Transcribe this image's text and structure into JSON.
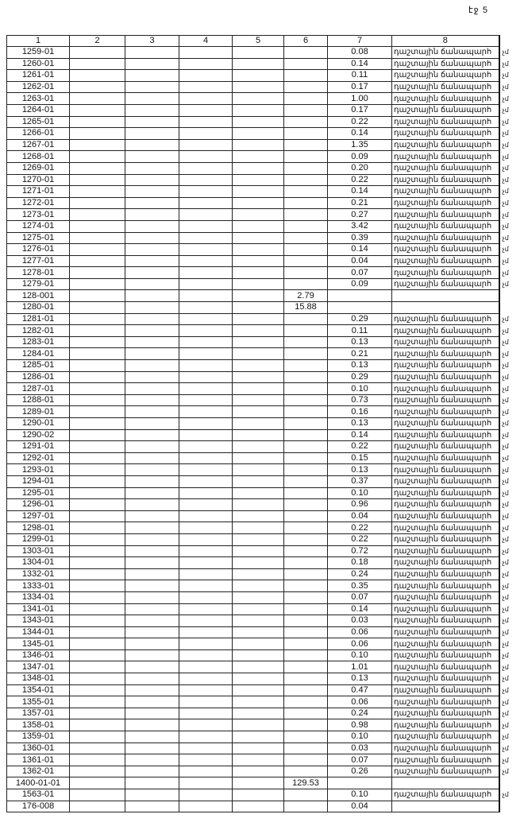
{
  "page_label": "էջ 5",
  "headers": [
    "1",
    "2",
    "3",
    "4",
    "5",
    "6",
    "7",
    "8"
  ],
  "road_label": "դաշտային ճանապարհ",
  "side_mark": "չմ",
  "rows": [
    {
      "id": "1259-01",
      "c7": "0.08",
      "road": true
    },
    {
      "id": "1260-01",
      "c7": "0.14",
      "road": true
    },
    {
      "id": "1261-01",
      "c7": "0.11",
      "road": true
    },
    {
      "id": "1262-01",
      "c7": "0.17",
      "road": true
    },
    {
      "id": "1263-01",
      "c7": "1.00",
      "road": true
    },
    {
      "id": "1264-01",
      "c7": "0.17",
      "road": true
    },
    {
      "id": "1265-01",
      "c7": "0.22",
      "road": true
    },
    {
      "id": "1266-01",
      "c7": "0.14",
      "road": true
    },
    {
      "id": "1267-01",
      "c7": "1.35",
      "road": true
    },
    {
      "id": "1268-01",
      "c7": "0.09",
      "road": true
    },
    {
      "id": "1269-01",
      "c7": "0.20",
      "road": true
    },
    {
      "id": "1270-01",
      "c7": "0.22",
      "road": true
    },
    {
      "id": "1271-01",
      "c7": "0.14",
      "road": true
    },
    {
      "id": "1272-01",
      "c7": "0.21",
      "road": true
    },
    {
      "id": "1273-01",
      "c7": "0.27",
      "road": true
    },
    {
      "id": "1274-01",
      "c7": "3.42",
      "road": true
    },
    {
      "id": "1275-01",
      "c7": "0.39",
      "road": true
    },
    {
      "id": "1276-01",
      "c7": "0.14",
      "road": true
    },
    {
      "id": "1277-01",
      "c7": "0.04",
      "road": true
    },
    {
      "id": "1278-01",
      "c7": "0.07",
      "road": true
    },
    {
      "id": "1279-01",
      "c7": "0.09",
      "road": true
    },
    {
      "id": "128-001",
      "c6": "2.79"
    },
    {
      "id": "1280-01",
      "c6": "15.88"
    },
    {
      "id": "1281-01",
      "c7": "0.29",
      "road": true
    },
    {
      "id": "1282-01",
      "c7": "0.11",
      "road": true
    },
    {
      "id": "1283-01",
      "c7": "0.13",
      "road": true
    },
    {
      "id": "1284-01",
      "c7": "0.21",
      "road": true
    },
    {
      "id": "1285-01",
      "c7": "0.13",
      "road": true
    },
    {
      "id": "1286-01",
      "c7": "0.29",
      "road": true
    },
    {
      "id": "1287-01",
      "c7": "0.10",
      "road": true
    },
    {
      "id": "1288-01",
      "c7": "0.73",
      "road": true
    },
    {
      "id": "1289-01",
      "c7": "0.16",
      "road": true
    },
    {
      "id": "1290-01",
      "c7": "0.13",
      "road": true
    },
    {
      "id": "1290-02",
      "c7": "0.14",
      "road": true
    },
    {
      "id": "1291-01",
      "c7": "0.22",
      "road": true
    },
    {
      "id": "1292-01",
      "c7": "0.15",
      "road": true
    },
    {
      "id": "1293-01",
      "c7": "0.13",
      "road": true
    },
    {
      "id": "1294-01",
      "c7": "0.37",
      "road": true
    },
    {
      "id": "1295-01",
      "c7": "0.10",
      "road": true
    },
    {
      "id": "1296-01",
      "c7": "0.96",
      "road": true
    },
    {
      "id": "1297-01",
      "c7": "0.04",
      "road": true
    },
    {
      "id": "1298-01",
      "c7": "0.22",
      "road": true
    },
    {
      "id": "1299-01",
      "c7": "0.22",
      "road": true
    },
    {
      "id": "1303-01",
      "c7": "0.72",
      "road": true
    },
    {
      "id": "1304-01",
      "c7": "0.18",
      "road": true
    },
    {
      "id": "1332-01",
      "c7": "0.24",
      "road": true
    },
    {
      "id": "1333-01",
      "c7": "0.35",
      "road": true
    },
    {
      "id": "1334-01",
      "c7": "0.07",
      "road": true
    },
    {
      "id": "1341-01",
      "c7": "0.14",
      "road": true
    },
    {
      "id": "1343-01",
      "c7": "0.03",
      "road": true
    },
    {
      "id": "1344-01",
      "c7": "0.06",
      "road": true
    },
    {
      "id": "1345-01",
      "c7": "0.06",
      "road": true
    },
    {
      "id": "1346-01",
      "c7": "0.10",
      "road": true
    },
    {
      "id": "1347-01",
      "c7": "1.01",
      "road": true
    },
    {
      "id": "1348-01",
      "c7": "0.13",
      "road": true
    },
    {
      "id": "1354-01",
      "c7": "0.47",
      "road": true
    },
    {
      "id": "1355-01",
      "c7": "0.06",
      "road": true
    },
    {
      "id": "1357-01",
      "c7": "0.24",
      "road": true
    },
    {
      "id": "1358-01",
      "c7": "0.98",
      "road": true
    },
    {
      "id": "1359-01",
      "c7": "0.10",
      "road": true
    },
    {
      "id": "1360-01",
      "c7": "0.03",
      "road": true
    },
    {
      "id": "1361-01",
      "c7": "0.07",
      "road": true
    },
    {
      "id": "1362-01",
      "c7": "0.26",
      "road": true
    },
    {
      "id": "1400-01-01",
      "c6": "129.53"
    },
    {
      "id": "1563-01",
      "c7": "0.10",
      "road": true
    },
    {
      "id": "176-008",
      "c7": "0.04"
    }
  ]
}
